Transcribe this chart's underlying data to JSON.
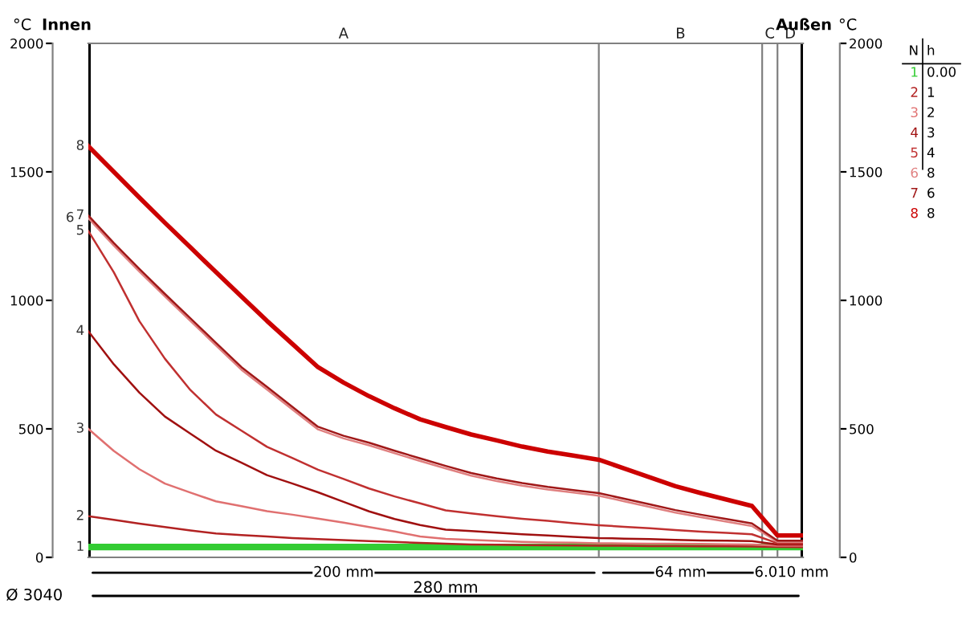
{
  "chart_data": {
    "type": "line",
    "ylabel": "°C",
    "y2label": "°C",
    "categories": [
      null,
      null,
      null,
      null,
      null,
      null,
      null,
      null,
      null,
      null,
      null,
      null,
      null,
      null,
      null,
      null,
      null,
      null,
      null,
      null,
      null,
      null,
      null,
      null,
      null,
      null,
      null,
      null,
      null
    ],
    "ylim": [
      0,
      2000
    ],
    "yticks": [
      0,
      500,
      1000,
      1500,
      2000
    ],
    "y2lim": [
      0,
      2000
    ],
    "y2ticks": [
      0,
      500,
      1000,
      1500,
      2000
    ],
    "tick_labels": "y",
    "grid": false,
    "legend": false,
    "marker": "none",
    "line_style": "solid",
    "annotations": [
      "Innen",
      "Außen",
      "200 mm",
      "64 mm",
      "6.0",
      "10 mm",
      "280 mm",
      "Ø 3040",
      "N",
      "h",
      "0.00",
      "1",
      "2",
      "3",
      "4",
      "8",
      "6",
      "8",
      "A",
      "B",
      "C",
      "D"
    ],
    "series": [
      {
        "name": "1",
        "color": "#33cc33",
        "values": [
          40,
          40,
          40,
          40,
          40,
          40,
          40,
          40,
          40,
          40,
          40,
          40,
          40,
          40,
          40,
          40,
          40,
          40,
          40,
          40,
          40,
          40,
          40,
          40,
          40,
          40,
          40,
          40,
          40
        ]
      },
      {
        "name": "2",
        "color": "#b22222",
        "values": [
          160,
          146,
          131,
          118,
          105,
          93,
          87,
          81,
          75,
          71,
          67,
          63,
          60,
          56,
          53,
          50,
          49,
          48,
          47,
          46,
          45,
          45,
          44,
          44,
          43,
          43,
          42,
          41,
          40
        ]
      },
      {
        "name": "3",
        "color": "#e07070",
        "values": [
          500,
          414,
          343,
          287,
          252,
          218,
          199,
          180,
          166,
          151,
          135,
          118,
          101,
          81,
          72,
          68,
          64,
          60,
          58,
          57,
          55,
          54,
          53,
          53,
          52,
          51,
          50,
          45,
          45
        ]
      },
      {
        "name": "4",
        "color": "#a01010",
        "values": [
          880,
          751,
          641,
          548,
          481,
          415,
          368,
          320,
          287,
          253,
          216,
          179,
          149,
          126,
          108,
          102,
          96,
          90,
          85,
          80,
          75,
          73,
          71,
          68,
          66,
          65,
          63,
          50,
          50
        ]
      },
      {
        "name": "5",
        "color": "#c03030",
        "values": [
          1270,
          1109,
          919,
          773,
          651,
          556,
          493,
          430,
          386,
          341,
          305,
          268,
          237,
          210,
          183,
          171,
          160,
          150,
          142,
          133,
          125,
          119,
          113,
          106,
          100,
          95,
          90,
          55,
          55
        ]
      },
      {
        "name": "6",
        "color": "#e08080",
        "values": [
          1320,
          1213,
          1112,
          1015,
          920,
          825,
          730,
          653,
          575,
          498,
          463,
          436,
          405,
          375,
          346,
          318,
          297,
          279,
          264,
          252,
          240,
          218,
          196,
          174,
          156,
          139,
          122,
          60,
          60
        ]
      },
      {
        "name": "7",
        "color": "#a01818",
        "values": [
          1330,
          1223,
          1122,
          1025,
          930,
          835,
          740,
          663,
          585,
          508,
          473,
          446,
          415,
          385,
          356,
          328,
          307,
          289,
          274,
          262,
          250,
          228,
          206,
          184,
          166,
          149,
          132,
          65,
          65
        ]
      },
      {
        "name": "8",
        "color": "#cc0000",
        "values": [
          1600,
          1500,
          1400,
          1302,
          1206,
          1110,
          1015,
          920,
          830,
          740,
          680,
          627,
          580,
          537,
          507,
          478,
          455,
          431,
          412,
          396,
          380,
          346,
          311,
          277,
          250,
          225,
          200,
          85,
          85
        ]
      }
    ]
  }
}
